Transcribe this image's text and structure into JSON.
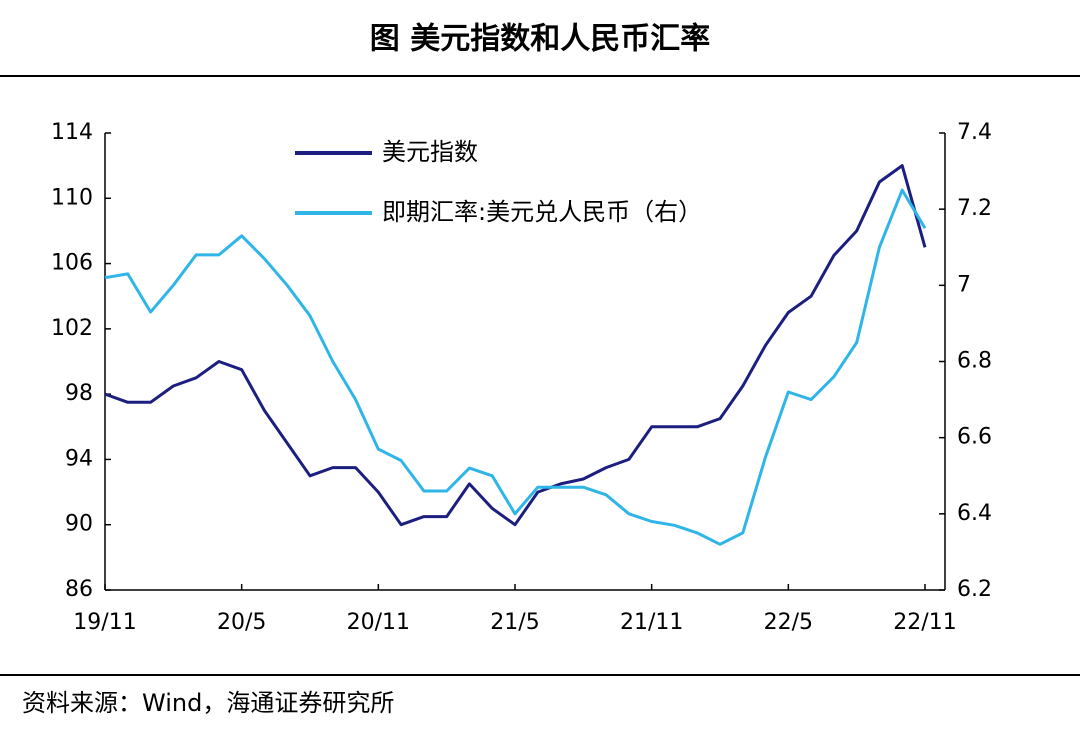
{
  "chart_data": {
    "type": "line",
    "title": "图  美元指数和人民币汇率",
    "source": "资料来源：Wind，海通证券研究所",
    "x": [
      "19/11",
      "19/12",
      "20/1",
      "20/2",
      "20/3",
      "20/4",
      "20/5",
      "20/6",
      "20/7",
      "20/8",
      "20/9",
      "20/10",
      "20/11",
      "20/12",
      "21/1",
      "21/2",
      "21/3",
      "21/4",
      "21/5",
      "21/6",
      "21/7",
      "21/8",
      "21/9",
      "21/10",
      "21/11",
      "21/12",
      "22/1",
      "22/2",
      "22/3",
      "22/4",
      "22/5",
      "22/6",
      "22/7",
      "22/8",
      "22/9",
      "22/10",
      "22/11"
    ],
    "xticks": [
      "19/11",
      "20/5",
      "20/11",
      "21/5",
      "21/11",
      "22/5",
      "22/11"
    ],
    "ylim": [
      86,
      114
    ],
    "yticks": [
      86,
      90,
      94,
      98,
      102,
      106,
      110,
      114
    ],
    "y2lim": [
      6.2,
      7.4
    ],
    "y2ticks": [
      6.2,
      6.4,
      6.6,
      6.8,
      7,
      7.2,
      7.4
    ],
    "legend": "upper left",
    "series": [
      {
        "name": "美元指数",
        "color": "#1c1f80",
        "values": [
          98,
          97.5,
          97.5,
          98.5,
          99,
          100,
          99.5,
          97,
          95,
          93,
          93.5,
          93.5,
          92,
          90,
          90.5,
          90.5,
          92.5,
          91,
          90,
          92,
          92.5,
          92.8,
          93.5,
          94,
          96,
          96,
          96,
          96.5,
          98.5,
          101,
          103,
          104,
          106.5,
          108,
          111,
          112,
          107
        ]
      },
      {
        "name": "即期汇率:美元兑人民币（右）",
        "color": "#2fb5e8",
        "axis": "y2",
        "values": [
          7.02,
          7.03,
          6.93,
          7.0,
          7.08,
          7.08,
          7.13,
          7.07,
          7.0,
          6.92,
          6.8,
          6.7,
          6.57,
          6.54,
          6.46,
          6.46,
          6.52,
          6.5,
          6.4,
          6.47,
          6.47,
          6.47,
          6.45,
          6.4,
          6.38,
          6.37,
          6.35,
          6.32,
          6.35,
          6.55,
          6.72,
          6.7,
          6.76,
          6.85,
          7.1,
          7.25,
          7.15
        ]
      }
    ]
  }
}
